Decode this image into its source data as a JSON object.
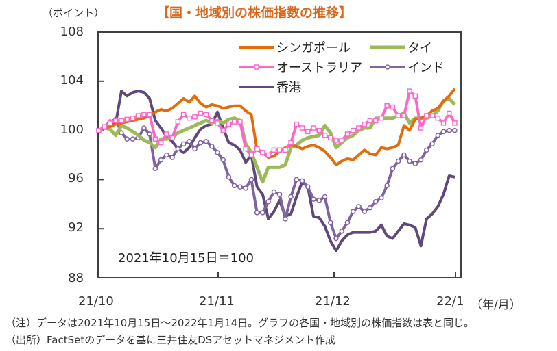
{
  "chart_data": {
    "type": "line",
    "title": "【国・地域別の株価指数の推移】",
    "ylabel": "（ポイント）",
    "xlabel": "（年/月）",
    "ylim": [
      88,
      108
    ],
    "yticks": [
      88,
      92,
      96,
      100,
      104,
      108
    ],
    "xticks": [
      "21/10",
      "21/11",
      "21/12",
      "22/1"
    ],
    "grid": false,
    "legend_position": "top-right",
    "annotation": "2021年10月15日＝100",
    "x_count": 64,
    "series": [
      {
        "name": "シンガポール",
        "color": "#e36c0a",
        "marker": "none",
        "values": [
          100,
          100.2,
          100.3,
          100.5,
          100.6,
          100.7,
          100.8,
          100.9,
          101.0,
          101.2,
          101.5,
          101.7,
          101.6,
          101.8,
          102.2,
          102.6,
          102.3,
          102.8,
          102.2,
          101.9,
          102.1,
          102.0,
          101.8,
          101.9,
          102.0,
          102.0,
          101.6,
          101.3,
          98.4,
          98.2,
          97.8,
          97.9,
          98.3,
          98.6,
          98.8,
          98.7,
          98.5,
          98.7,
          98.8,
          98.6,
          98.3,
          97.8,
          97.2,
          97.5,
          97.7,
          97.6,
          98.0,
          98.4,
          98.1,
          98.0,
          98.6,
          98.5,
          98.6,
          98.8,
          100.4,
          100.0,
          100.9,
          101.0,
          101.2,
          101.6,
          101.8,
          102.4,
          102.8,
          103.4
        ]
      },
      {
        "name": "タイ",
        "color": "#9bbb59",
        "marker": "none",
        "values": [
          100,
          100.2,
          100.1,
          99.6,
          100.4,
          100.2,
          99.9,
          99.6,
          99.2,
          99.0,
          98.6,
          99.3,
          99.3,
          99.4,
          99.8,
          100.0,
          100.2,
          100.4,
          100.6,
          100.8,
          100.6,
          100.8,
          100.6,
          100.9,
          101.0,
          100.8,
          98.9,
          98.2,
          97.0,
          95.8,
          97.0,
          97.0,
          97.0,
          97.2,
          98.6,
          98.8,
          99.2,
          99.4,
          99.5,
          99.6,
          100.4,
          99.8,
          98.6,
          99.0,
          99.4,
          99.6,
          100.0,
          100.2,
          100.2,
          101.0,
          101.0,
          101.0,
          101.0,
          101.2,
          101.4,
          100.6,
          101.0,
          101.0,
          101.0,
          101.2,
          101.6,
          102.4,
          102.6,
          102.1
        ]
      },
      {
        "name": "オーストラリア",
        "color": "#ff66cc",
        "marker": "square",
        "values": [
          100,
          100.3,
          100.6,
          100.8,
          100.8,
          100.9,
          101.0,
          101.2,
          101.3,
          101.3,
          99.3,
          99.0,
          99.7,
          99.4,
          100.7,
          101.3,
          101.0,
          101.1,
          101.4,
          101.3,
          100.8,
          100.6,
          100.0,
          100.5,
          100.7,
          100.7,
          98.5,
          98.0,
          98.5,
          98.2,
          98.0,
          98.4,
          98.4,
          98.4,
          99.0,
          100.5,
          100.2,
          99.9,
          100.2,
          100.0,
          99.6,
          99.4,
          99.2,
          99.2,
          99.7,
          100.0,
          100.2,
          100.5,
          100.8,
          100.8,
          101.0,
          102.0,
          101.9,
          101.2,
          101.2,
          103.2,
          102.8,
          100.2,
          101.2,
          101.2,
          101.0,
          100.6,
          101.4,
          100.6
        ]
      },
      {
        "name": "インド",
        "color": "#8064a2",
        "marker": "circle",
        "values": [
          100,
          100.3,
          100.7,
          100.9,
          99.8,
          99.3,
          99.3,
          99.4,
          100.2,
          99.7,
          96.9,
          97.6,
          98.0,
          97.8,
          98.5,
          98.9,
          99.1,
          98.5,
          99.0,
          99.1,
          98.7,
          98.2,
          97.6,
          96.2,
          95.5,
          95.4,
          95.3,
          96.0,
          93.3,
          93.3,
          94.2,
          95.0,
          94.8,
          92.8,
          94.6,
          96.0,
          95.9,
          95.4,
          94.4,
          94.3,
          94.6,
          92.5,
          91.2,
          91.8,
          92.5,
          93.4,
          93.8,
          93.4,
          93.7,
          94.2,
          94.5,
          95.5,
          96.9,
          97.5,
          98.0,
          97.5,
          97.3,
          97.6,
          98.4,
          98.9,
          99.6,
          99.9,
          100.0,
          100.0
        ]
      },
      {
        "name": "香港",
        "color": "#5f497a",
        "marker": "none",
        "values": [
          100,
          100.2,
          100.4,
          100.6,
          103.2,
          102.8,
          103.1,
          103.2,
          103.1,
          102.6,
          100.8,
          100.2,
          99.5,
          99.1,
          98.5,
          98.2,
          98.6,
          99.4,
          100.1,
          100.4,
          100.5,
          101.5,
          100.2,
          99.0,
          98.8,
          98.4,
          97.4,
          98.0,
          95.4,
          94.8,
          92.8,
          93.4,
          94.3,
          93.0,
          93.2,
          94.6,
          95.8,
          95.4,
          93.0,
          92.9,
          92.2,
          91.0,
          90.2,
          91.0,
          91.5,
          91.7,
          91.7,
          91.7,
          91.7,
          91.8,
          92.3,
          91.4,
          91.2,
          91.8,
          92.4,
          92.3,
          92.1,
          90.6,
          92.8,
          93.2,
          93.8,
          94.8,
          96.3,
          96.2
        ]
      }
    ]
  },
  "notes": {
    "note1": "（注）データは2021年10月15日～2022年1月14日。グラフの各国・地域別の株価指数は表と同じ。",
    "note2": "（出所）FactSetのデータを基に三井住友DSアセットマネジメント作成"
  }
}
